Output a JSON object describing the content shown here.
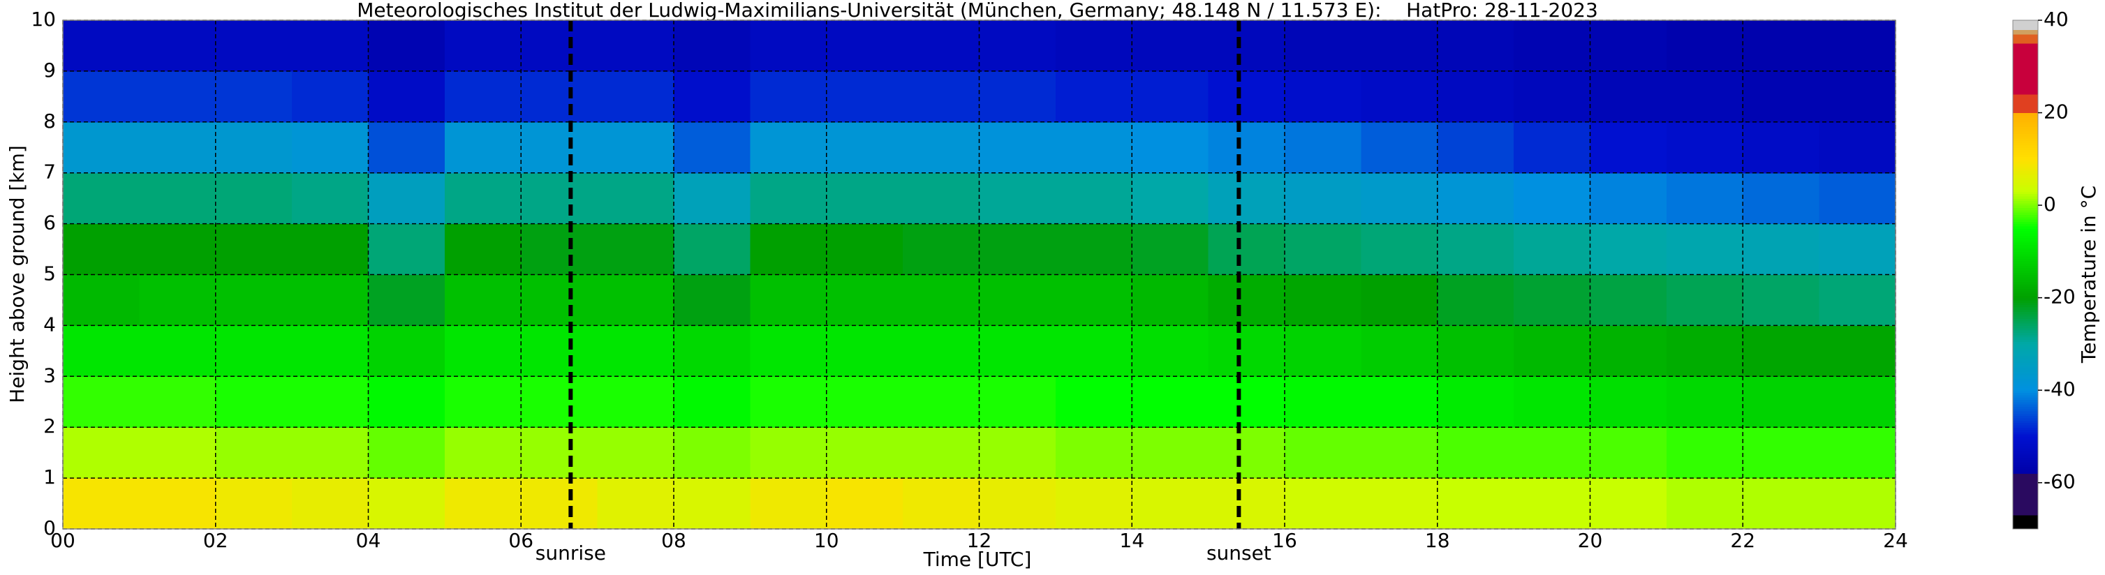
{
  "chart_data": {
    "type": "heatmap",
    "title": "Meteorologisches Institut der Ludwig-Maximilians-Universität (München, Germany; 48.148 N / 11.573 E):    HatPro: 28-11-2023",
    "xlabel": "Time [UTC]",
    "ylabel": "Height above ground [km]",
    "colorbar_label": "Temperature in °C",
    "x": [
      0,
      1,
      2,
      3,
      4,
      5,
      6,
      7,
      8,
      9,
      10,
      11,
      12,
      13,
      14,
      15,
      16,
      17,
      18,
      19,
      20,
      21,
      22,
      23,
      24
    ],
    "y": [
      0,
      1,
      2,
      3,
      4,
      5,
      6,
      7,
      8,
      9,
      10
    ],
    "z": [
      [
        9,
        9,
        8,
        7,
        5,
        8,
        8,
        6,
        5,
        8,
        9,
        8,
        7,
        6,
        5,
        5,
        4,
        4,
        3,
        3,
        3,
        2,
        2,
        2
      ],
      [
        2,
        2,
        1,
        1,
        -1,
        1,
        1,
        1,
        0,
        1,
        1,
        1,
        1,
        0,
        0,
        0,
        -1,
        -1,
        -2,
        -2,
        -2,
        -3,
        -3,
        -3
      ],
      [
        -3,
        -3,
        -4,
        -4,
        -6,
        -4,
        -4,
        -4,
        -6,
        -4,
        -4,
        -4,
        -4,
        -5,
        -5,
        -5,
        -6,
        -6,
        -8,
        -9,
        -10,
        -11,
        -12,
        -12
      ],
      [
        -9,
        -9,
        -9,
        -9,
        -12,
        -9,
        -9,
        -9,
        -11,
        -9,
        -9,
        -9,
        -9,
        -9,
        -10,
        -11,
        -12,
        -13,
        -15,
        -16,
        -17,
        -18,
        -19,
        -19
      ],
      [
        -16,
        -15,
        -15,
        -15,
        -22,
        -15,
        -15,
        -15,
        -21,
        -15,
        -15,
        -15,
        -15,
        -15,
        -16,
        -18,
        -19,
        -20,
        -22,
        -23,
        -24,
        -25,
        -26,
        -27
      ],
      [
        -20,
        -20,
        -20,
        -20,
        -27,
        -20,
        -21,
        -21,
        -26,
        -20,
        -20,
        -21,
        -21,
        -21,
        -22,
        -25,
        -26,
        -27,
        -28,
        -29,
        -30,
        -31,
        -32,
        -33
      ],
      [
        -27,
        -27,
        -27,
        -28,
        -34,
        -28,
        -28,
        -28,
        -33,
        -28,
        -28,
        -28,
        -29,
        -29,
        -30,
        -33,
        -35,
        -36,
        -38,
        -40,
        -41,
        -42,
        -43,
        -44
      ],
      [
        -37,
        -37,
        -37,
        -38,
        -45,
        -38,
        -38,
        -38,
        -44,
        -38,
        -38,
        -38,
        -39,
        -39,
        -40,
        -41,
        -42,
        -44,
        -46,
        -48,
        -50,
        -51,
        -52,
        -53
      ],
      [
        -47,
        -47,
        -47,
        -48,
        -52,
        -48,
        -48,
        -48,
        -51,
        -48,
        -48,
        -48,
        -48,
        -49,
        -49,
        -50,
        -51,
        -52,
        -53,
        -54,
        -55,
        -55,
        -56,
        -56
      ],
      [
        -53,
        -53,
        -53,
        -53,
        -56,
        -53,
        -53,
        -53,
        -55,
        -53,
        -53,
        -53,
        -53,
        -54,
        -54,
        -54,
        -55,
        -55,
        -55,
        -56,
        -56,
        -57,
        -57,
        -57
      ]
    ],
    "xlim": [
      0,
      24
    ],
    "ylim": [
      0,
      10
    ],
    "clim": [
      -70,
      40
    ],
    "xticks": [
      {
        "value": 0,
        "label": "00"
      },
      {
        "value": 2,
        "label": "02"
      },
      {
        "value": 4,
        "label": "04"
      },
      {
        "value": 6,
        "label": "06"
      },
      {
        "value": 8,
        "label": "08"
      },
      10,
      12,
      14,
      16,
      18,
      20,
      22,
      24
    ],
    "yticks": [
      0,
      1,
      2,
      3,
      4,
      5,
      6,
      7,
      8,
      9,
      10
    ],
    "cticks": [
      -60,
      -40,
      -20,
      0,
      20,
      40
    ],
    "grid": true,
    "colorscale": [
      {
        "value": -70,
        "color": "#000000"
      },
      {
        "value": -67,
        "color": "#000000"
      },
      {
        "value": -67,
        "color": "#2a0a60"
      },
      {
        "value": -58,
        "color": "#2a0a60"
      },
      {
        "value": -58,
        "color": "#0000a8"
      },
      {
        "value": -50,
        "color": "#0010d0"
      },
      {
        "value": -40,
        "color": "#0090e0"
      },
      {
        "value": -30,
        "color": "#00a8a8"
      },
      {
        "value": -20,
        "color": "#00a000"
      },
      {
        "value": -5,
        "color": "#00ff00"
      },
      {
        "value": 3,
        "color": "#c8ff00"
      },
      {
        "value": 10,
        "color": "#ffe000"
      },
      {
        "value": 20,
        "color": "#ffb000"
      },
      {
        "value": 20,
        "color": "#e04020"
      },
      {
        "value": 24,
        "color": "#e04020"
      },
      {
        "value": 24,
        "color": "#c8003c"
      },
      {
        "value": 35,
        "color": "#c8003c"
      },
      {
        "value": 35,
        "color": "#e06020"
      },
      {
        "value": 37,
        "color": "#e06020"
      },
      {
        "value": 37,
        "color": "#d0a060"
      },
      {
        "value": 38,
        "color": "#d0a060"
      },
      {
        "value": 38,
        "color": "#d0d0d0"
      },
      {
        "value": 40,
        "color": "#d0d0d0"
      }
    ],
    "annotations": [
      {
        "text": "sunrise",
        "x": 6.65
      },
      {
        "text": "sunset",
        "x": 15.4
      }
    ]
  }
}
